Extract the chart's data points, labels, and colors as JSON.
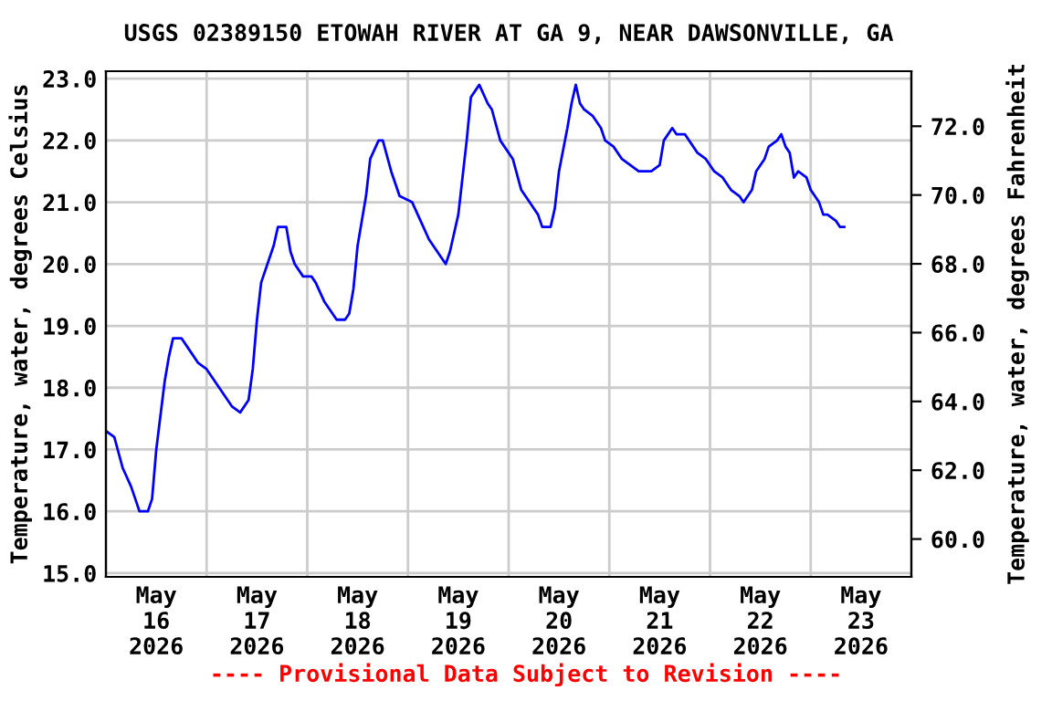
{
  "chart_data": {
    "type": "line",
    "title": "USGS 02389150 ETOWAH RIVER AT GA 9, NEAR DAWSONVILLE, GA",
    "ylabel": "Temperature, water, degrees Celsius",
    "y2label": "Temperature, water, degrees Fahrenheit",
    "annotations": [
      "---- Provisional Data Subject to Revision ----"
    ],
    "series": [
      {
        "color": "#0000ff",
        "x": [
          "2026-05-16T00:00",
          "2026-05-16T02:00",
          "2026-05-16T04:00",
          "2026-05-16T06:00",
          "2026-05-16T07:00",
          "2026-05-16T08:00",
          "2026-05-16T10:00",
          "2026-05-16T11:00",
          "2026-05-16T12:00",
          "2026-05-16T14:00",
          "2026-05-16T15:00",
          "2026-05-16T16:00",
          "2026-05-16T18:00",
          "2026-05-16T20:00",
          "2026-05-16T22:00",
          "2026-05-17T00:00",
          "2026-05-17T02:00",
          "2026-05-17T04:00",
          "2026-05-17T06:00",
          "2026-05-17T08:00",
          "2026-05-17T10:00",
          "2026-05-17T11:00",
          "2026-05-17T12:00",
          "2026-05-17T13:00",
          "2026-05-17T15:00",
          "2026-05-17T16:00",
          "2026-05-17T17:00",
          "2026-05-17T19:00",
          "2026-05-17T20:00",
          "2026-05-17T21:00",
          "2026-05-17T23:00",
          "2026-05-18T01:00",
          "2026-05-18T02:00",
          "2026-05-18T04:00",
          "2026-05-18T06:00",
          "2026-05-18T07:00",
          "2026-05-18T09:00",
          "2026-05-18T10:00",
          "2026-05-18T11:00",
          "2026-05-18T12:00",
          "2026-05-18T14:00",
          "2026-05-18T15:00",
          "2026-05-18T17:00",
          "2026-05-18T18:00",
          "2026-05-18T20:00",
          "2026-05-18T22:00",
          "2026-05-19T01:00",
          "2026-05-19T03:00",
          "2026-05-19T05:00",
          "2026-05-19T07:00",
          "2026-05-19T09:00",
          "2026-05-19T10:00",
          "2026-05-19T12:00",
          "2026-05-19T13:00",
          "2026-05-19T14:00",
          "2026-05-19T15:00",
          "2026-05-19T17:00",
          "2026-05-19T19:00",
          "2026-05-19T20:00",
          "2026-05-19T22:00",
          "2026-05-20T01:00",
          "2026-05-20T03:00",
          "2026-05-20T05:00",
          "2026-05-20T07:00",
          "2026-05-20T08:00",
          "2026-05-20T10:00",
          "2026-05-20T11:00",
          "2026-05-20T12:00",
          "2026-05-20T14:00",
          "2026-05-20T15:00",
          "2026-05-20T16:00",
          "2026-05-20T17:00",
          "2026-05-20T18:00",
          "2026-05-20T20:00",
          "2026-05-20T22:00",
          "2026-05-20T23:00",
          "2026-05-21T01:00",
          "2026-05-21T03:00",
          "2026-05-21T05:00",
          "2026-05-21T07:00",
          "2026-05-21T10:00",
          "2026-05-21T12:00",
          "2026-05-21T13:00",
          "2026-05-21T15:00",
          "2026-05-21T16:00",
          "2026-05-21T18:00",
          "2026-05-21T21:00",
          "2026-05-21T23:00",
          "2026-05-22T01:00",
          "2026-05-22T03:00",
          "2026-05-22T05:00",
          "2026-05-22T07:00",
          "2026-05-22T08:00",
          "2026-05-22T10:00",
          "2026-05-22T11:00",
          "2026-05-22T13:00",
          "2026-05-22T14:00",
          "2026-05-22T16:00",
          "2026-05-22T17:00",
          "2026-05-22T18:00",
          "2026-05-22T19:00",
          "2026-05-22T20:00",
          "2026-05-22T21:00",
          "2026-05-22T23:00",
          "2026-05-23T00:00",
          "2026-05-23T02:00",
          "2026-05-23T03:00",
          "2026-05-23T04:00",
          "2026-05-23T06:00",
          "2026-05-23T07:00",
          "2026-05-23T08:00"
        ],
        "values": [
          17.3,
          17.2,
          16.7,
          16.4,
          16.2,
          16.0,
          16.0,
          16.2,
          17.0,
          18.1,
          18.5,
          18.8,
          18.8,
          18.6,
          18.4,
          18.3,
          18.1,
          17.9,
          17.7,
          17.6,
          17.8,
          18.3,
          19.1,
          19.7,
          20.1,
          20.3,
          20.6,
          20.6,
          20.2,
          20.0,
          19.8,
          19.8,
          19.7,
          19.4,
          19.2,
          19.1,
          19.1,
          19.2,
          19.6,
          20.3,
          21.1,
          21.7,
          22.0,
          22.0,
          21.5,
          21.1,
          21.0,
          20.7,
          20.4,
          20.2,
          20.0,
          20.2,
          20.8,
          21.4,
          22.0,
          22.7,
          22.9,
          22.6,
          22.5,
          22.0,
          21.7,
          21.2,
          21.0,
          20.8,
          20.6,
          20.6,
          20.9,
          21.5,
          22.2,
          22.6,
          22.9,
          22.6,
          22.5,
          22.4,
          22.2,
          22.0,
          21.9,
          21.7,
          21.6,
          21.5,
          21.5,
          21.6,
          22.0,
          22.2,
          22.1,
          22.1,
          21.8,
          21.7,
          21.5,
          21.4,
          21.2,
          21.1,
          21.0,
          21.2,
          21.5,
          21.7,
          21.9,
          22.0,
          22.1,
          21.9,
          21.8,
          21.4,
          21.5,
          21.4,
          21.2,
          21.0,
          20.8,
          20.8,
          20.7,
          20.6,
          20.6
        ]
      }
    ],
    "xlim": [
      "2026-05-16T00:00",
      "2026-05-24T00:00"
    ],
    "xticks": [
      {
        "value": "2026-05-16T12:00",
        "label": "May\n16\n2026"
      },
      {
        "value": "2026-05-17T12:00",
        "label": "May\n17\n2026"
      },
      {
        "value": "2026-05-18T12:00",
        "label": "May\n18\n2026"
      },
      {
        "value": "2026-05-19T12:00",
        "label": "May\n19\n2026"
      },
      {
        "value": "2026-05-20T12:00",
        "label": "May\n20\n2026"
      },
      {
        "value": "2026-05-21T12:00",
        "label": "May\n21\n2026"
      },
      {
        "value": "2026-05-22T12:00",
        "label": "May\n22\n2026"
      },
      {
        "value": "2026-05-23T12:00",
        "label": "May\n23\n2026"
      },
      {
        "value": "2026-05-17T00:00",
        "label": null
      },
      {
        "value": "2026-05-18T00:00",
        "label": null
      },
      {
        "value": "2026-05-19T00:00",
        "label": null
      },
      {
        "value": "2026-05-20T00:00",
        "label": null
      },
      {
        "value": "2026-05-21T00:00",
        "label": null
      },
      {
        "value": "2026-05-22T00:00",
        "label": null
      },
      {
        "value": "2026-05-23T00:00",
        "label": null
      }
    ],
    "ylim": [
      14.94,
      23.12
    ],
    "yticks": [
      {
        "value": 15,
        "label": "15.0"
      },
      {
        "value": 16,
        "label": "16.0"
      },
      {
        "value": 17,
        "label": "17.0"
      },
      {
        "value": 18,
        "label": "18.0"
      },
      {
        "value": 19,
        "label": "19.0"
      },
      {
        "value": 20,
        "label": "20.0"
      },
      {
        "value": 21,
        "label": "21.0"
      },
      {
        "value": 22,
        "label": "22.0"
      },
      {
        "value": 23,
        "label": "23.0"
      }
    ],
    "y2lim": [
      58.9,
      73.6
    ],
    "y2ticks": [
      {
        "value": 60,
        "label": "60.0"
      },
      {
        "value": 62,
        "label": "62.0"
      },
      {
        "value": 64,
        "label": "64.0"
      },
      {
        "value": 66,
        "label": "66.0"
      },
      {
        "value": 68,
        "label": "68.0"
      },
      {
        "value": 70,
        "label": "70.0"
      },
      {
        "value": 72,
        "label": "72.0"
      }
    ],
    "grid": true,
    "legend": false,
    "marker": "none",
    "line_style": "solid"
  }
}
